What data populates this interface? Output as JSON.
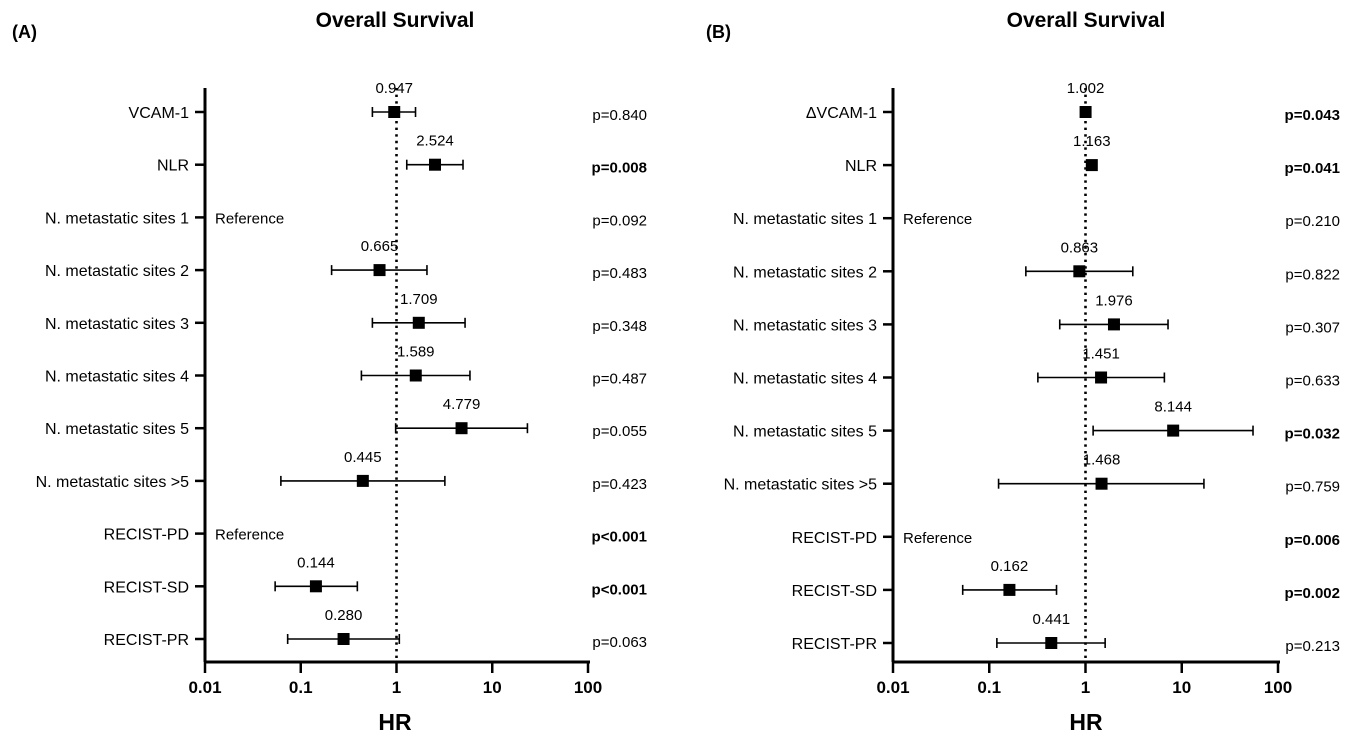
{
  "chart_data": [
    {
      "type": "forest",
      "panel_label": "(A)",
      "title": "Overall Survival",
      "xlabel": "HR",
      "xscale": "log",
      "xlim": [
        0.01,
        100
      ],
      "xticks": [
        "0.01",
        "0.1",
        "1",
        "10",
        "100"
      ],
      "reference_line": 1,
      "rows": [
        {
          "label": "VCAM-1",
          "hr": 0.947,
          "hr_label": "0.947",
          "ci_low": 0.56,
          "ci_high": 1.58,
          "p": "p=0.840",
          "bold": false
        },
        {
          "label": "NLR",
          "hr": 2.524,
          "hr_label": "2.524",
          "ci_low": 1.28,
          "ci_high": 4.95,
          "p": "p=0.008",
          "bold": true
        },
        {
          "label": "N. metastatic sites 1",
          "reference": true,
          "ref_text": "Reference",
          "p": "p=0.092",
          "bold": false
        },
        {
          "label": "N. metastatic sites 2",
          "hr": 0.665,
          "hr_label": "0.665",
          "ci_low": 0.21,
          "ci_high": 2.08,
          "p": "p=0.483",
          "bold": false
        },
        {
          "label": "N. metastatic sites 3",
          "hr": 1.709,
          "hr_label": "1.709",
          "ci_low": 0.56,
          "ci_high": 5.2,
          "p": "p=0.348",
          "bold": false
        },
        {
          "label": "N. metastatic sites 4",
          "hr": 1.589,
          "hr_label": "1.589",
          "ci_low": 0.43,
          "ci_high": 5.85,
          "p": "p=0.487",
          "bold": false
        },
        {
          "label": "N. metastatic sites 5",
          "hr": 4.779,
          "hr_label": "4.779",
          "ci_low": 0.98,
          "ci_high": 23.3,
          "p": "p=0.055",
          "bold": false
        },
        {
          "label": "N. metastatic sites >5",
          "hr": 0.445,
          "hr_label": "0.445",
          "ci_low": 0.062,
          "ci_high": 3.2,
          "p": "p=0.423",
          "bold": false
        },
        {
          "label": "RECIST-PD",
          "reference": true,
          "ref_text": "Reference",
          "p": "p<0.001",
          "bold": true
        },
        {
          "label": "RECIST-SD",
          "hr": 0.144,
          "hr_label": "0.144",
          "ci_low": 0.054,
          "ci_high": 0.39,
          "p": "p<0.001",
          "bold": true
        },
        {
          "label": "RECIST-PR",
          "hr": 0.28,
          "hr_label": "0.280",
          "ci_low": 0.073,
          "ci_high": 1.07,
          "p": "p=0.063",
          "bold": false
        }
      ]
    },
    {
      "type": "forest",
      "panel_label": "(B)",
      "title": "Overall Survival",
      "xlabel": "HR",
      "xscale": "log",
      "xlim": [
        0.01,
        100
      ],
      "xticks": [
        "0.01",
        "0.1",
        "1",
        "10",
        "100"
      ],
      "reference_line": 1,
      "rows": [
        {
          "label": "ΔVCAM-1",
          "hr": 1.002,
          "hr_label": "1.002",
          "ci_low": 0.98,
          "ci_high": 1.03,
          "p": "p=0.043",
          "bold": true
        },
        {
          "label": "NLR",
          "hr": 1.163,
          "hr_label": "1.163",
          "ci_low": 1.06,
          "ci_high": 1.28,
          "p": "p=0.041",
          "bold": true
        },
        {
          "label": "N. metastatic sites 1",
          "reference": true,
          "ref_text": "Reference",
          "p": "p=0.210",
          "bold": false
        },
        {
          "label": "N. metastatic sites 2",
          "hr": 0.863,
          "hr_label": "0.863",
          "ci_low": 0.24,
          "ci_high": 3.1,
          "p": "p=0.822",
          "bold": false
        },
        {
          "label": "N. metastatic sites 3",
          "hr": 1.976,
          "hr_label": "1.976",
          "ci_low": 0.54,
          "ci_high": 7.2,
          "p": "p=0.307",
          "bold": false
        },
        {
          "label": "N. metastatic sites 4",
          "hr": 1.451,
          "hr_label": "1.451",
          "ci_low": 0.32,
          "ci_high": 6.6,
          "p": "p=0.633",
          "bold": false
        },
        {
          "label": "N. metastatic sites 5",
          "hr": 8.144,
          "hr_label": "8.144",
          "ci_low": 1.2,
          "ci_high": 55.0,
          "p": "p=0.032",
          "bold": true
        },
        {
          "label": "N. metastatic sites >5",
          "hr": 1.468,
          "hr_label": "1.468",
          "ci_low": 0.125,
          "ci_high": 17.0,
          "p": "p=0.759",
          "bold": false
        },
        {
          "label": "RECIST-PD",
          "reference": true,
          "ref_text": "Reference",
          "p": "p=0.006",
          "bold": true
        },
        {
          "label": "RECIST-SD",
          "hr": 0.162,
          "hr_label": "0.162",
          "ci_low": 0.053,
          "ci_high": 0.5,
          "p": "p=0.002",
          "bold": true
        },
        {
          "label": "RECIST-PR",
          "hr": 0.441,
          "hr_label": "0.441",
          "ci_low": 0.12,
          "ci_high": 1.6,
          "p": "p=0.213",
          "bold": false
        }
      ]
    }
  ]
}
